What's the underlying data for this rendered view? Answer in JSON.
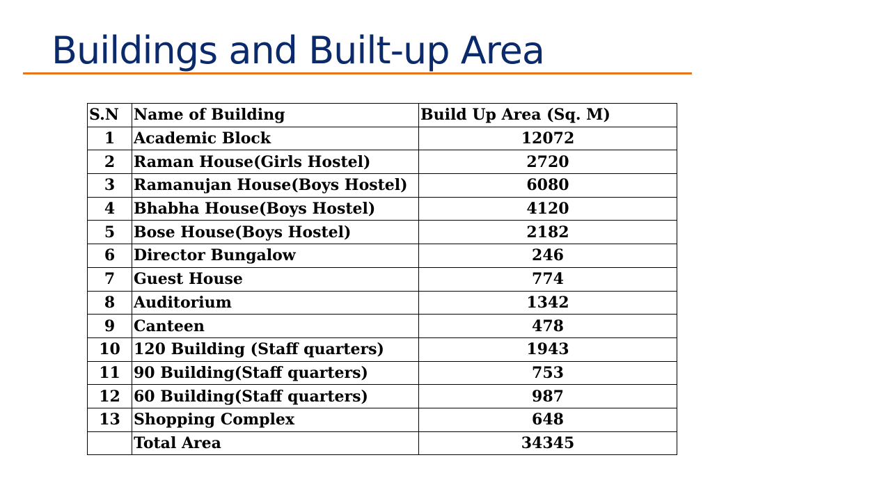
{
  "slide": {
    "title": "Buildings and Built-up Area"
  },
  "table": {
    "headers": {
      "sn": "S.N",
      "name": "Name of Building",
      "area": "Build Up Area (Sq. M)"
    },
    "rows": [
      {
        "sn": "1",
        "name": "Academic Block",
        "area": "12072"
      },
      {
        "sn": "2",
        "name": "Raman House(Girls Hostel)",
        "area": "2720"
      },
      {
        "sn": "3",
        "name": "Ramanujan House(Boys Hostel)",
        "area": "6080"
      },
      {
        "sn": "4",
        "name": "Bhabha House(Boys Hostel)",
        "area": "4120"
      },
      {
        "sn": "5",
        "name": "Bose House(Boys Hostel)",
        "area": "2182"
      },
      {
        "sn": "6",
        "name": "Director Bungalow",
        "area": "246"
      },
      {
        "sn": "7",
        "name": "Guest House",
        "area": "774"
      },
      {
        "sn": "8",
        "name": "Auditorium",
        "area": "1342"
      },
      {
        "sn": "9",
        "name": "Canteen",
        "area": "478"
      },
      {
        "sn": "10",
        "name": "120 Building (Staff quarters)",
        "area": "1943"
      },
      {
        "sn": "11",
        "name": "90 Building(Staff quarters)",
        "area": "753"
      },
      {
        "sn": "12",
        "name": "60 Building(Staff quarters)",
        "area": "987"
      },
      {
        "sn": "13",
        "name": "Shopping Complex",
        "area": "648"
      }
    ],
    "total": {
      "sn": "",
      "name": "Total Area",
      "area": "34345"
    }
  },
  "colors": {
    "title": "#0b2a6b",
    "rule": "#e8751a"
  }
}
